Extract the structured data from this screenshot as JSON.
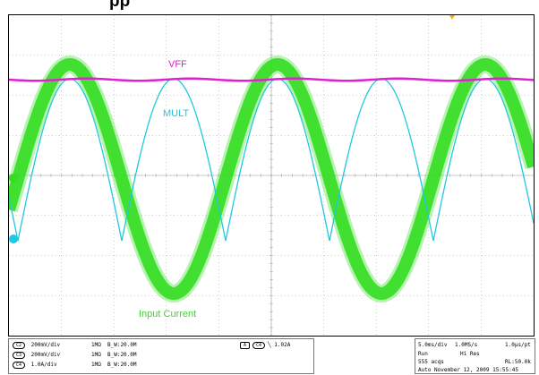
{
  "page": {
    "heading": "pp"
  },
  "scope": {
    "colors": {
      "input_current": "#33dd22",
      "vff": "#e020d0",
      "mult": "#20c8e0",
      "grid": "#a0a0a0",
      "trigger": "#ffaa00"
    },
    "trace_labels": {
      "vff": "VFF",
      "mult": "MULT",
      "input_current": "Input Current"
    }
  },
  "status": {
    "channels": [
      {
        "tag": "C2",
        "scale": "200mV/div",
        "impedance": "1MΩ",
        "bw": "B_W:20.0M"
      },
      {
        "tag": "C3",
        "scale": "200mV/div",
        "impedance": "1MΩ",
        "bw": "B_W:20.0M"
      },
      {
        "tag": "C4",
        "scale": "1.0A/div",
        "impedance": "1MΩ",
        "bw": "B_W:20.0M"
      }
    ],
    "trigger": {
      "source": "C4",
      "symbol": "╲",
      "level": "1.02A"
    },
    "timebase": {
      "hscale": "5.0ms/div",
      "sample_rate": "1.0MS/s",
      "resolution": "1.0µs/pt",
      "state": "Run",
      "acq_mode": "Hi Res",
      "acqs": "555 acqs",
      "record_length": "RL:50.0k",
      "date_line": "Auto  November 12, 2009   15:55:45"
    }
  }
}
